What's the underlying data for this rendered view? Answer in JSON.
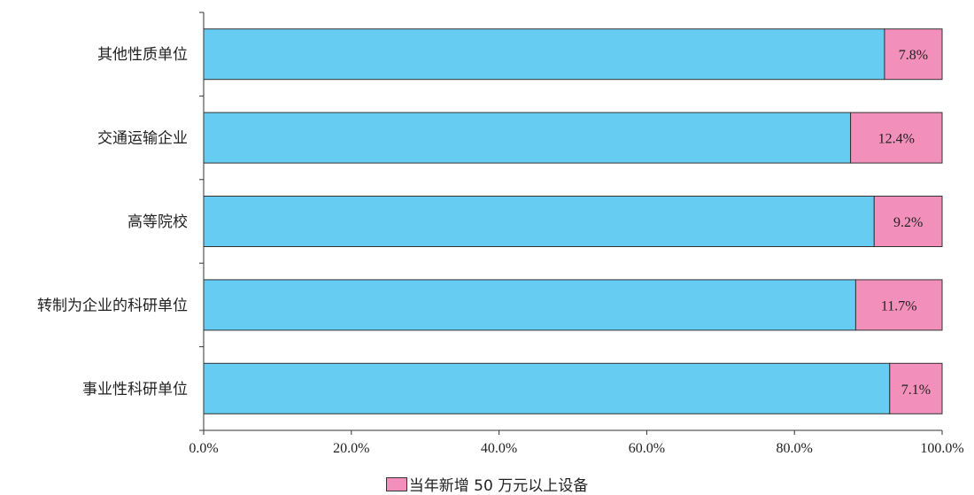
{
  "chart_data": {
    "type": "bar",
    "orientation": "horizontal",
    "stacked": true,
    "categories": [
      "其他性质单位",
      "交通运输企业",
      "高等院校",
      "转制为企业的科研单位",
      "事业性科研单位"
    ],
    "series": [
      {
        "values": [
          92.2,
          87.6,
          90.8,
          88.3,
          92.9
        ],
        "color": "#66ccf2"
      },
      {
        "name": "当年新增 50 万元以上设备",
        "values": [
          7.8,
          12.4,
          9.2,
          11.7,
          7.1
        ],
        "color": "#f28fba"
      }
    ],
    "data_labels": [
      "7.8%",
      "12.4%",
      "9.2%",
      "11.7%",
      "7.1%"
    ],
    "x_ticks": [
      "0.0%",
      "20.0%",
      "40.0%",
      "60.0%",
      "80.0%",
      "100.0%"
    ],
    "xlim": [
      0,
      100
    ],
    "grid": false,
    "legend_position": "bottom"
  }
}
